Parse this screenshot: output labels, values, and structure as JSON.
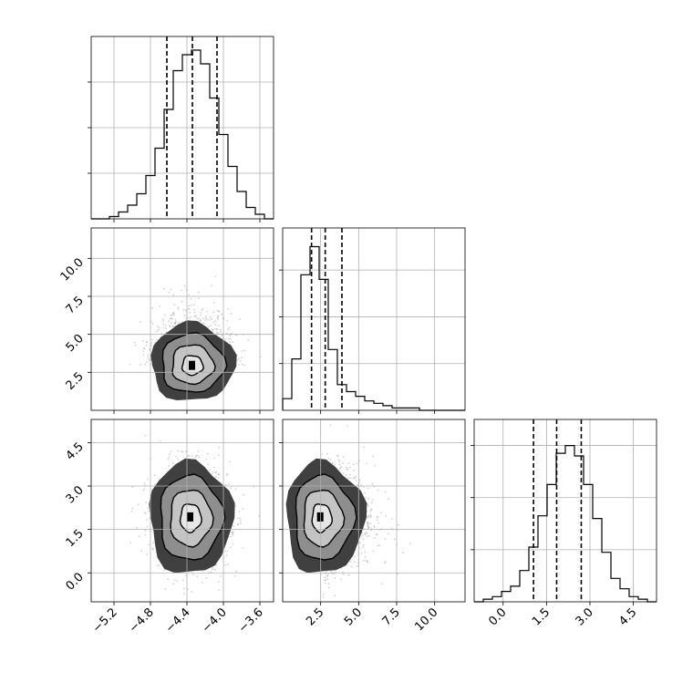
{
  "chart_data": {
    "type": "corner",
    "parameters": [
      {
        "range": [
          -5.45,
          -3.45
        ],
        "ticks": [
          -5.2,
          -4.8,
          -4.4,
          -4.0,
          -3.6
        ],
        "tick_labels": [
          "−5.2",
          "−4.8",
          "−4.4",
          "−4.0",
          "−3.6"
        ]
      },
      {
        "range": [
          0.0,
          12.0
        ],
        "ticks": [
          2.5,
          5.0,
          7.5,
          10.0
        ],
        "tick_labels": [
          "2.5",
          "5.0",
          "7.5",
          "10.0"
        ]
      },
      {
        "range": [
          -1.0,
          5.3
        ],
        "ticks": [
          0.0,
          1.5,
          3.0,
          4.5
        ],
        "tick_labels": [
          "0.0",
          "1.5",
          "3.0",
          "4.5"
        ]
      }
    ],
    "histograms": [
      {
        "x_start": -5.45,
        "bin_width": 0.1,
        "counts": [
          0,
          0,
          1,
          3,
          6,
          11,
          19,
          31,
          48,
          65,
          72,
          74,
          68,
          53,
          37,
          23,
          12,
          5,
          2,
          0
        ],
        "quantiles": [
          -4.62,
          -4.34,
          -4.07
        ],
        "ylim": [
          0,
          80
        ]
      },
      {
        "x_start": 0.0,
        "bin_width": 0.6,
        "counts": [
          5,
          22,
          58,
          70,
          56,
          26,
          11,
          8,
          6,
          4,
          3,
          2,
          1,
          1,
          1,
          0,
          0,
          0,
          0,
          0
        ],
        "quantiles": [
          1.9,
          2.8,
          3.9
        ],
        "ylim": [
          0,
          78
        ]
      },
      {
        "x_start": -1.0,
        "bin_width": 0.315,
        "counts": [
          0,
          1,
          2,
          4,
          6,
          12,
          21,
          33,
          45,
          57,
          60,
          56,
          45,
          32,
          19,
          9,
          5,
          2,
          1,
          0
        ],
        "quantiles": [
          1.05,
          1.85,
          2.7
        ],
        "ylim": [
          0,
          70
        ]
      }
    ],
    "panels_2d": [
      {
        "x_param": 0,
        "y_param": 1,
        "center": [
          -4.34,
          2.9
        ],
        "sigma": [
          0.2,
          1.0
        ]
      },
      {
        "x_param": 0,
        "y_param": 2,
        "center": [
          -4.36,
          1.9
        ],
        "sigma": [
          0.2,
          0.85
        ]
      },
      {
        "x_param": 1,
        "y_param": 2,
        "center": [
          2.5,
          1.9
        ],
        "sigma": [
          1.0,
          0.85
        ]
      }
    ],
    "contour_levels": [
      "0.5-sigma",
      "1-sigma",
      "1.5-sigma",
      "2-sigma"
    ],
    "scatter_points_color": "#999999",
    "grid": true
  }
}
